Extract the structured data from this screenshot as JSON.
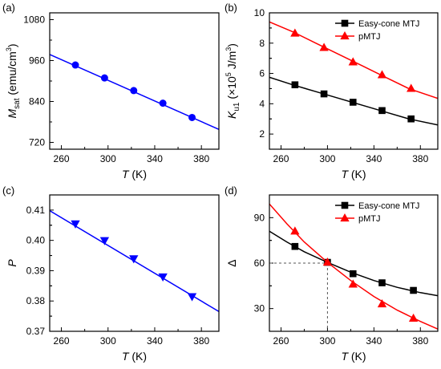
{
  "chart_data": [
    {
      "panel": "(a)",
      "type": "line",
      "xlabel": "T (K)",
      "ylabel": "Msat (emu/cm3)",
      "xlim": [
        250,
        395
      ],
      "ylim": [
        700,
        1100
      ],
      "xticks": [
        260,
        300,
        340,
        380
      ],
      "yticks": [
        720,
        840,
        960,
        1080
      ],
      "grid": false,
      "series": [
        {
          "color": "#0000ff",
          "marker": "circle",
          "line": {
            "x": [
              250,
              395
            ],
            "y": [
              978,
              758
            ]
          },
          "points": {
            "x": [
              272,
              297,
              322,
              347,
              372
            ],
            "y": [
              947,
              909,
              872,
              835,
              793
            ]
          }
        }
      ]
    },
    {
      "panel": "(b)",
      "type": "line",
      "xlabel": "T (K)",
      "ylabel": "Ku1 (×10^5 J/m3)",
      "xlim": [
        250,
        395
      ],
      "ylim": [
        1,
        10
      ],
      "xticks": [
        260,
        300,
        340,
        380
      ],
      "yticks": [
        2,
        4,
        6,
        8,
        10
      ],
      "grid": false,
      "legend": "top-right",
      "series": [
        {
          "name": "Easy-cone MTJ",
          "color": "#000000",
          "marker": "square",
          "line": {
            "x": [
              250,
              270,
              290,
              310,
              330,
              350,
              370,
              395
            ],
            "y": [
              5.75,
              5.25,
              4.8,
              4.35,
              3.9,
              3.45,
              3.0,
              2.6
            ]
          },
          "points": {
            "x": [
              272,
              297,
              322,
              347,
              372
            ],
            "y": [
              5.25,
              4.65,
              4.1,
              3.55,
              3.0
            ]
          }
        },
        {
          "name": "pMTJ",
          "color": "#ff0000",
          "marker": "triangle-up",
          "line": {
            "x": [
              250,
              270,
              290,
              310,
              330,
              350,
              370,
              395
            ],
            "y": [
              9.4,
              8.75,
              8.0,
              7.25,
              6.5,
              5.75,
              5.0,
              4.35
            ]
          },
          "points": {
            "x": [
              272,
              297,
              322,
              347,
              372
            ],
            "y": [
              8.65,
              7.7,
              6.75,
              5.9,
              5.0
            ]
          }
        }
      ]
    },
    {
      "panel": "(c)",
      "type": "line",
      "xlabel": "T (K)",
      "ylabel": "P",
      "xlim": [
        250,
        395
      ],
      "ylim": [
        0.37,
        0.415
      ],
      "xticks": [
        260,
        300,
        340,
        380
      ],
      "yticks": [
        0.37,
        0.38,
        0.39,
        0.4,
        0.41
      ],
      "ytick_labels": [
        "0.37",
        "0.38",
        "0.39",
        "0.40",
        "0.41"
      ],
      "grid": false,
      "series": [
        {
          "color": "#0000ff",
          "marker": "triangle-down",
          "line": {
            "x": [
              250,
              395
            ],
            "y": [
              0.4098,
              0.3765
            ]
          },
          "points": {
            "x": [
              272,
              297,
              322,
              347,
              372
            ],
            "y": [
              0.4055,
              0.4,
              0.394,
              0.388,
              0.3815
            ]
          }
        }
      ]
    },
    {
      "panel": "(d)",
      "type": "line",
      "xlabel": "T (K)",
      "ylabel": "Δ",
      "xlim": [
        250,
        395
      ],
      "ylim": [
        15,
        105
      ],
      "xticks": [
        260,
        300,
        340,
        380
      ],
      "yticks": [
        30,
        60,
        90
      ],
      "grid": false,
      "legend": "top-right",
      "reference_line": {
        "x": [
          250,
          300
        ],
        "y": [
          60,
          60
        ],
        "style": "dashed"
      },
      "series": [
        {
          "name": "Easy-cone MTJ",
          "color": "#000000",
          "marker": "square",
          "line": {
            "x": [
              250,
              265,
              280,
              300,
              320,
              340,
              360,
              380,
              395
            ],
            "y": [
              81,
              74,
              67.5,
              60.5,
              54,
              48.5,
              44,
              40.5,
              38.5
            ]
          },
          "points": {
            "x": [
              272,
              300,
              322,
              347,
              374
            ],
            "y": [
              71,
              60.5,
              53,
              47,
              42
            ]
          }
        },
        {
          "name": "pMTJ",
          "color": "#ff0000",
          "marker": "triangle-up",
          "line": {
            "x": [
              250,
              265,
              280,
              300,
              320,
              340,
              360,
              380,
              395
            ],
            "y": [
              99,
              86,
              74,
              60.5,
              48.5,
              38,
              29,
              21.5,
              16.5
            ]
          },
          "points": {
            "x": [
              272,
              300,
              322,
              347,
              374
            ],
            "y": [
              81,
              60.5,
              46,
              33,
              23.5
            ]
          }
        }
      ]
    }
  ]
}
